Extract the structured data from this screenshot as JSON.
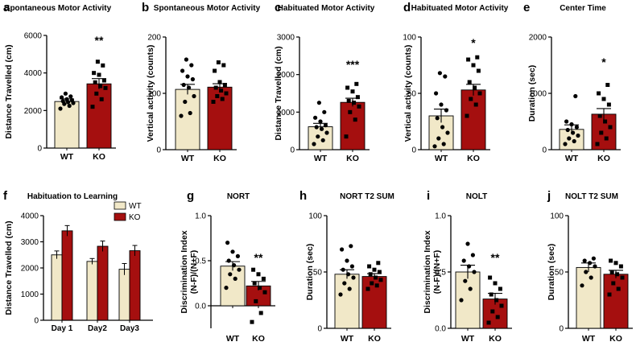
{
  "colors": {
    "wt_fill": "#f1e8c8",
    "ko_fill": "#a50f0f",
    "axis": "#000000",
    "text": "#000000"
  },
  "chart_data": [
    {
      "id": "a",
      "panel_letter": "a",
      "type": "bar",
      "title": "Spontaneous Motor Activity",
      "ylabel": "Distance Travelled (cm)",
      "xlabel": "",
      "categories": [
        "WT",
        "KO"
      ],
      "ylim": [
        0,
        6000
      ],
      "yticks": [
        "0",
        "2000",
        "4000",
        "6000"
      ],
      "values": [
        2480,
        3420
      ],
      "errors": [
        140,
        280
      ],
      "points": [
        [
          2100,
          2250,
          2350,
          2400,
          2450,
          2500,
          2550,
          2600,
          2700,
          2750,
          2900
        ],
        [
          2200,
          2600,
          2900,
          3200,
          3300,
          3500,
          3600,
          3900,
          4000,
          4400,
          4600
        ]
      ],
      "significance": "**"
    },
    {
      "id": "b",
      "panel_letter": "b",
      "type": "bar",
      "title": "Spontaneous Motor Activity",
      "ylabel": "Vertical activity (counts)",
      "xlabel": "",
      "categories": [
        "WT",
        "KO"
      ],
      "ylim": [
        0,
        200
      ],
      "yticks": [
        "0",
        "100",
        "200"
      ],
      "values": [
        107,
        111
      ],
      "errors": [
        9,
        6
      ],
      "points": [
        [
          60,
          65,
          85,
          95,
          110,
          115,
          125,
          130,
          140,
          150,
          160
        ],
        [
          85,
          90,
          95,
          100,
          105,
          110,
          115,
          120,
          140,
          150,
          155
        ]
      ],
      "significance": ""
    },
    {
      "id": "c",
      "panel_letter": "c",
      "type": "bar",
      "title": "Habituated Motor Activity",
      "ylabel": "Distance Travelled (cm)",
      "xlabel": "",
      "categories": [
        "WT",
        "KO"
      ],
      "ylim": [
        0,
        3000
      ],
      "yticks": [
        "0",
        "1000",
        "2000",
        "3000"
      ],
      "values": [
        610,
        1260
      ],
      "errors": [
        90,
        110
      ],
      "points": [
        [
          150,
          250,
          350,
          450,
          550,
          600,
          650,
          750,
          850,
          1000,
          1250
        ],
        [
          350,
          800,
          1000,
          1150,
          1250,
          1300,
          1400,
          1550,
          1650,
          1750
        ]
      ],
      "significance": "***"
    },
    {
      "id": "d",
      "panel_letter": "d",
      "type": "bar",
      "title": "Habituated Motor Activity",
      "ylabel": "Vertical activity (counts)",
      "xlabel": "",
      "categories": [
        "WT",
        "KO"
      ],
      "ylim": [
        0,
        100
      ],
      "yticks": [
        "0",
        "50",
        "100"
      ],
      "values": [
        30,
        53
      ],
      "errors": [
        6,
        5
      ],
      "points": [
        [
          3,
          5,
          10,
          15,
          20,
          28,
          35,
          40,
          50,
          65,
          68
        ],
        [
          30,
          40,
          45,
          50,
          55,
          60,
          70,
          75,
          80,
          82
        ]
      ],
      "significance": "*"
    },
    {
      "id": "e",
      "panel_letter": "e",
      "type": "bar",
      "title": "Center Time",
      "ylabel": "Duration (sec)",
      "xlabel": "",
      "categories": [
        "WT",
        "KO"
      ],
      "ylim": [
        0,
        2000
      ],
      "yticks": [
        "0",
        "1000",
        "2000"
      ],
      "values": [
        360,
        630
      ],
      "errors": [
        80,
        100
      ],
      "points": [
        [
          100,
          150,
          200,
          250,
          300,
          350,
          400,
          450,
          500,
          950
        ],
        [
          100,
          200,
          300,
          400,
          500,
          600,
          800,
          900,
          1000,
          1150
        ]
      ],
      "significance": "*"
    },
    {
      "id": "f",
      "panel_letter": "f",
      "type": "bar",
      "title": "Habituation to Learning",
      "ylabel": "Distance Travelled (cm)",
      "xlabel": "",
      "categories": [
        "Day 1",
        "Day2",
        "Day3"
      ],
      "ylim": [
        0,
        4000
      ],
      "yticks": [
        "0",
        "1000",
        "2000",
        "3000",
        "4000"
      ],
      "legend_position": "top-right",
      "series": [
        {
          "name": "WT",
          "values": [
            2500,
            2250,
            1950
          ],
          "errors": [
            150,
            110,
            220
          ]
        },
        {
          "name": "KO",
          "values": [
            3420,
            2830,
            2660
          ],
          "errors": [
            200,
            200,
            200
          ]
        }
      ]
    },
    {
      "id": "g",
      "panel_letter": "g",
      "type": "bar",
      "title": "NORT",
      "ylabel": "Discrimination Index (N-F)/(N+F)",
      "xlabel": "",
      "categories": [
        "WT",
        "KO"
      ],
      "ylim": [
        -0.25,
        1.0
      ],
      "yticks": [
        "0.0",
        "0.5",
        "1.0"
      ],
      "ytick_values": [
        0,
        0.5,
        1.0
      ],
      "values": [
        0.44,
        0.22
      ],
      "errors": [
        0.05,
        0.05
      ],
      "points": [
        [
          0.2,
          0.3,
          0.35,
          0.4,
          0.45,
          0.5,
          0.55,
          0.6,
          0.7
        ],
        [
          -0.18,
          -0.08,
          0.05,
          0.15,
          0.2,
          0.25,
          0.3,
          0.35,
          0.4
        ]
      ],
      "significance": "**"
    },
    {
      "id": "h",
      "panel_letter": "h",
      "type": "bar",
      "title": "NORT T2 SUM",
      "ylabel": "Duration (sec)",
      "xlabel": "",
      "categories": [
        "WT",
        "KO"
      ],
      "ylim": [
        0,
        100
      ],
      "yticks": [
        "0",
        "50",
        "100"
      ],
      "values": [
        48,
        46
      ],
      "errors": [
        4,
        2.5
      ],
      "points": [
        [
          30,
          35,
          40,
          45,
          48,
          52,
          55,
          60,
          70,
          73
        ],
        [
          35,
          38,
          40,
          43,
          45,
          48,
          50,
          52,
          55,
          58
        ]
      ],
      "significance": ""
    },
    {
      "id": "i",
      "panel_letter": "i",
      "type": "bar",
      "title": "NOLT",
      "ylabel": "Discrimination Index (N-F)/(N+F)",
      "xlabel": "",
      "categories": [
        "WT",
        "KO"
      ],
      "ylim": [
        0,
        1.0
      ],
      "yticks": [
        "0.0",
        "0.5",
        "1.0"
      ],
      "values": [
        0.5,
        0.26
      ],
      "errors": [
        0.06,
        0.05
      ],
      "points": [
        [
          0.25,
          0.35,
          0.42,
          0.5,
          0.55,
          0.6,
          0.65,
          0.75
        ],
        [
          0.05,
          0.1,
          0.15,
          0.2,
          0.25,
          0.3,
          0.35,
          0.4,
          0.45
        ]
      ],
      "significance": "**"
    },
    {
      "id": "j",
      "panel_letter": "j",
      "type": "bar",
      "title": "NOLT T2 SUM",
      "ylabel": "Duration (sec)",
      "xlabel": "",
      "categories": [
        "WT",
        "KO"
      ],
      "ylim": [
        0,
        100
      ],
      "yticks": [
        "0",
        "50",
        "100"
      ],
      "values": [
        54,
        48
      ],
      "errors": [
        4,
        3.5
      ],
      "points": [
        [
          38,
          45,
          50,
          55,
          58,
          60,
          62
        ],
        [
          30,
          35,
          40,
          45,
          48,
          50,
          55,
          58,
          60
        ]
      ],
      "significance": ""
    }
  ]
}
